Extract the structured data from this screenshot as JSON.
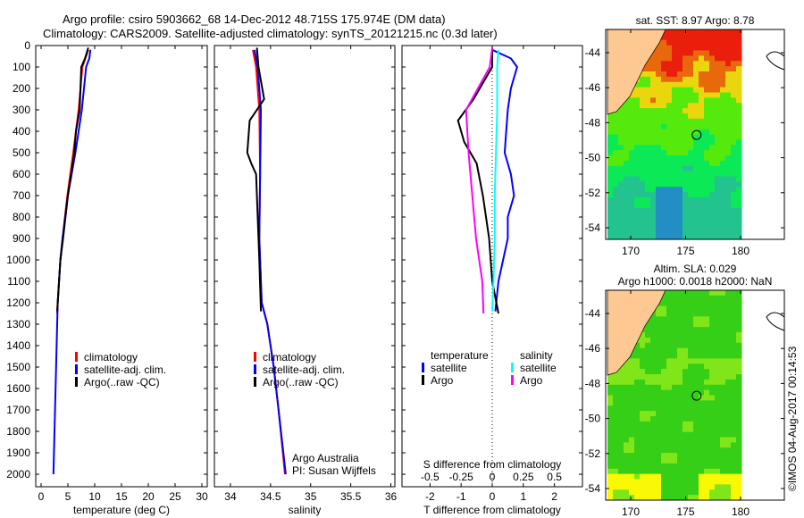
{
  "title_line1": "Argo profile: csiro 5903662_68 14-Dec-2012 48.715S 175.974E (DM data)",
  "title_line2": "Climatology: CARS2009. Satellite-adjusted climatology: synTS_20121215.nc (0.3d later)",
  "credit": "Argo Australia",
  "pi": "PI: Susan Wijffels",
  "timestamp": "©IMOS 04-Aug-2017 00:14:53",
  "chart_data": [
    {
      "type": "line",
      "name": "temperature",
      "xlabel": "temperature (deg C)",
      "ylabel": "",
      "xlim": [
        -1,
        31
      ],
      "ylim": [
        0,
        2050
      ],
      "xticks": [
        "0",
        "5",
        "10",
        "15",
        "20",
        "25",
        "30"
      ],
      "yticks": [
        "0",
        "100",
        "200",
        "300",
        "400",
        "500",
        "600",
        "700",
        "800",
        "900",
        "1000",
        "1100",
        "1200",
        "1300",
        "1400",
        "1500",
        "1600",
        "1700",
        "1800",
        "1900",
        "2000"
      ],
      "legend": [
        "climatology",
        "satellite-adj. clim.",
        "Argo(..raw -QC)"
      ],
      "series": [
        {
          "name": "climatology",
          "color": "#ff0000",
          "depth": [
            20,
            100,
            300,
            500,
            700,
            900,
            1000,
            1200,
            1250
          ],
          "values": [
            8.8,
            7.7,
            7.0,
            6.0,
            4.9,
            4.0,
            3.6,
            3.1,
            3.0
          ]
        },
        {
          "name": "satellite-adj. clim.",
          "color": "#0000ff",
          "depth": [
            20,
            60,
            100,
            300,
            500,
            700,
            900,
            1000,
            1200,
            1400,
            1700,
            2000
          ],
          "values": [
            9.2,
            9.0,
            8.4,
            7.6,
            6.4,
            5.0,
            4.0,
            3.6,
            3.1,
            2.9,
            2.6,
            2.3
          ]
        },
        {
          "name": "Argo",
          "color": "#000000",
          "depth": [
            10,
            60,
            100,
            300,
            400,
            500,
            700,
            900,
            1000,
            1200,
            1240
          ],
          "values": [
            8.8,
            8.2,
            7.5,
            7.2,
            6.5,
            6.2,
            5.0,
            4.1,
            3.6,
            3.1,
            3.0
          ]
        }
      ]
    },
    {
      "type": "line",
      "name": "salinity",
      "xlabel": "salinity",
      "xlim": [
        33.8,
        36.05
      ],
      "ylim": [
        0,
        2050
      ],
      "xticks": [
        "34",
        "34.5",
        "35",
        "35.5",
        "36"
      ],
      "legend": [
        "climatology",
        "satellite-adj. clim.",
        "Argo(..raw -QC)"
      ],
      "series": [
        {
          "name": "climatology",
          "color": "#ff0000",
          "depth": [
            20,
            100,
            300,
            600,
            900,
            1200,
            1300,
            1500,
            1700,
            2000
          ],
          "values": [
            34.28,
            34.32,
            34.36,
            34.37,
            34.36,
            34.39,
            34.46,
            34.54,
            34.6,
            34.68
          ]
        },
        {
          "name": "satellite-adj. clim.",
          "color": "#0000ff",
          "depth": [
            20,
            100,
            300,
            600,
            900,
            1200,
            1300,
            1500,
            1700,
            2000
          ],
          "values": [
            34.3,
            34.34,
            34.38,
            34.37,
            34.36,
            34.39,
            34.46,
            34.54,
            34.6,
            34.69
          ]
        },
        {
          "name": "Argo",
          "color": "#000000",
          "depth": [
            10,
            100,
            250,
            350,
            450,
            500,
            550,
            600,
            800,
            1000,
            1240
          ],
          "values": [
            34.33,
            34.35,
            34.42,
            34.24,
            34.22,
            34.21,
            34.26,
            34.32,
            34.34,
            34.36,
            34.38
          ]
        }
      ]
    },
    {
      "type": "line",
      "name": "difference",
      "xlabel": "T difference from climatology",
      "x2label": "S difference from climatology",
      "xlim": [
        -2.9,
        2.9
      ],
      "ylim": [
        0,
        2050
      ],
      "xticks": [
        "-2",
        "-1",
        "0",
        "1",
        "2"
      ],
      "x2ticks": [
        "-0.5",
        "-0.25",
        "0",
        "0.25",
        "0.5"
      ],
      "legend_headers": [
        "temperature",
        "salinity"
      ],
      "legend": [
        "satellite",
        "Argo",
        "satellite",
        "Argo"
      ],
      "series": [
        {
          "name": "T satellite",
          "color": "#0000ff",
          "unit": "T",
          "depth": [
            20,
            60,
            100,
            200,
            300,
            500,
            600,
            700,
            800,
            900,
            1100,
            1240
          ],
          "values": [
            0.0,
            0.6,
            0.8,
            0.6,
            0.5,
            0.4,
            0.6,
            0.7,
            0.5,
            0.5,
            0.2,
            0.1
          ]
        },
        {
          "name": "T Argo",
          "color": "#000000",
          "unit": "T",
          "depth": [
            10,
            100,
            250,
            350,
            450,
            550,
            700,
            900,
            1100,
            1250
          ],
          "values": [
            0.0,
            0.0,
            -0.6,
            -1.1,
            -0.9,
            -0.5,
            -0.3,
            -0.1,
            0.0,
            0.2
          ]
        },
        {
          "name": "S satellite",
          "color": "#00ffff",
          "unit": "S",
          "depth": [
            20,
            100,
            300,
            500,
            700,
            900,
            1100,
            1240
          ],
          "values": [
            0.05,
            0.04,
            0.04,
            0.03,
            0.02,
            0.02,
            0.01,
            0.0
          ]
        },
        {
          "name": "S Argo",
          "color": "#ff00ff",
          "unit": "S",
          "depth": [
            10,
            100,
            300,
            500,
            700,
            900,
            1100,
            1250
          ],
          "values": [
            0.0,
            -0.02,
            -0.21,
            -0.19,
            -0.16,
            -0.13,
            -0.08,
            -0.07
          ]
        }
      ]
    },
    {
      "type": "heatmap",
      "name": "sst-map",
      "title": "sat. SST: 8.97 Argo: 8.78",
      "xticks": [
        "170",
        "175",
        "180"
      ],
      "yticks": [
        "-44",
        "-46",
        "-48",
        "-50",
        "-52",
        "-54"
      ]
    },
    {
      "type": "heatmap",
      "name": "sla-map",
      "title1": "Altim. SLA: 0.029",
      "title2": "Argo h1000: 0.0018 h2000: NaN",
      "xticks": [
        "170",
        "175",
        "180"
      ],
      "yticks": [
        "-44",
        "-46",
        "-48",
        "-50",
        "-52",
        "-54"
      ]
    }
  ]
}
